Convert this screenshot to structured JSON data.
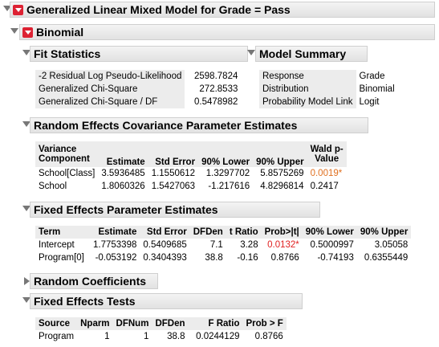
{
  "report": {
    "title": "Generalized Linear Mixed Model for Grade = Pass",
    "binomial_title": "Binomial",
    "fit_statistics": {
      "title": "Fit Statistics",
      "rows": [
        {
          "label": "-2 Residual Log Pseudo-Likelihood",
          "value": "2598.7824"
        },
        {
          "label": "Generalized Chi-Square",
          "value": "272.8533"
        },
        {
          "label": "Generalized Chi-Square / DF",
          "value": "0.5478982"
        }
      ]
    },
    "model_summary": {
      "title": "Model Summary",
      "rows": [
        {
          "label": "Response",
          "value": "Grade"
        },
        {
          "label": "Distribution",
          "value": "Binomial"
        },
        {
          "label": "Probability Model Link",
          "value": "Logit"
        }
      ]
    },
    "random_effects": {
      "title": "Random Effects Covariance Parameter Estimates",
      "headers": [
        "Variance Component",
        "Estimate",
        "Std Error",
        "90% Lower",
        "90% Upper",
        "Wald p-Value"
      ],
      "header_lines": [
        [
          "Variance",
          "Component"
        ],
        [
          "",
          "Estimate"
        ],
        [
          "",
          "Std Error"
        ],
        [
          "",
          "90% Lower"
        ],
        [
          "",
          "90% Upper"
        ],
        [
          "Wald p-",
          "Value"
        ]
      ],
      "rows": [
        [
          "School[Class]",
          "3.5936485",
          "1.1550612",
          "1.3297702",
          "5.8575269",
          "0.0019*"
        ],
        [
          "School",
          "1.8060326",
          "1.5427063",
          "-1.217616",
          "4.8296814",
          "0.2417"
        ]
      ]
    },
    "fixed_effects": {
      "title": "Fixed Effects Parameter Estimates",
      "headers": [
        "Term",
        "Estimate",
        "Std Error",
        "DFDen",
        "t Ratio",
        "Prob>|t|",
        "90% Lower",
        "90% Upper"
      ],
      "rows": [
        [
          "Intercept",
          "1.7753398",
          "0.5409685",
          "7.1",
          "3.28",
          "0.0132*",
          "0.5000997",
          "3.05058"
        ],
        [
          "Program[0]",
          "-0.053192",
          "0.3404393",
          "38.8",
          "-0.16",
          "0.8766",
          "-0.74193",
          "0.6355449"
        ]
      ]
    },
    "random_coefficients": {
      "title": "Random Coefficients"
    },
    "fixed_effects_tests": {
      "title": "Fixed Effects Tests",
      "headers": [
        "Source",
        "Nparm",
        "DFNum",
        "DFDen",
        "F Ratio",
        "Prob > F"
      ],
      "rows": [
        [
          "Program",
          "1",
          "1",
          "38.8",
          "0.0244129",
          "0.8766"
        ]
      ]
    },
    "colors": {
      "significant_orange": "#e07020",
      "significant_red": "#e02020",
      "toggle_red": "#d23"
    }
  }
}
